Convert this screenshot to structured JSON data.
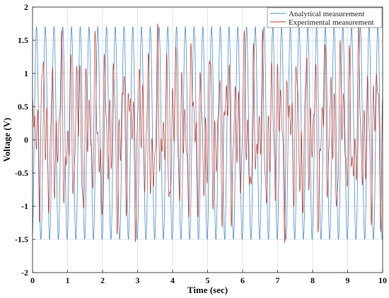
{
  "chart_data": {
    "type": "line",
    "title": "",
    "xlabel": "Time (sec)",
    "ylabel": "Voltage (V)",
    "xlim": [
      0,
      10
    ],
    "ylim": [
      -2,
      2
    ],
    "x_ticks": [
      0,
      1,
      2,
      3,
      4,
      5,
      6,
      7,
      8,
      9,
      10
    ],
    "y_ticks": [
      -2,
      -1.5,
      -1,
      -0.5,
      0,
      0.5,
      1,
      1.5,
      2
    ],
    "x_tick_labels": [
      "0",
      "1",
      "2",
      "3",
      "4",
      "5",
      "6",
      "7",
      "8",
      "9",
      "10"
    ],
    "y_tick_labels": [
      "-2",
      "-1.5",
      "-1",
      "-0.5",
      "0",
      "0.5",
      "1",
      "1.5",
      "2"
    ],
    "grid": true,
    "legend_position": "top-right",
    "series": [
      {
        "name": "Analytical measurement",
        "color": "#4c8fcc",
        "description_of_values": "sinusoid",
        "amplitude": 1.6,
        "offset": 0.1,
        "frequency_hz": 4.0,
        "peak": 1.7,
        "trough": -1.5
      },
      {
        "name": "Experimental measurement",
        "color": "#c0392b",
        "peak": 1.75,
        "trough": -1.55,
        "components": [
          {
            "amplitude": 0.55,
            "frequency_hz": 4.0
          },
          {
            "amplitude": 0.45,
            "frequency_hz": 7.3
          },
          {
            "amplitude": 0.3,
            "frequency_hz": 11.7
          },
          {
            "amplitude": 0.2,
            "frequency_hz": 2.1
          }
        ]
      }
    ]
  }
}
